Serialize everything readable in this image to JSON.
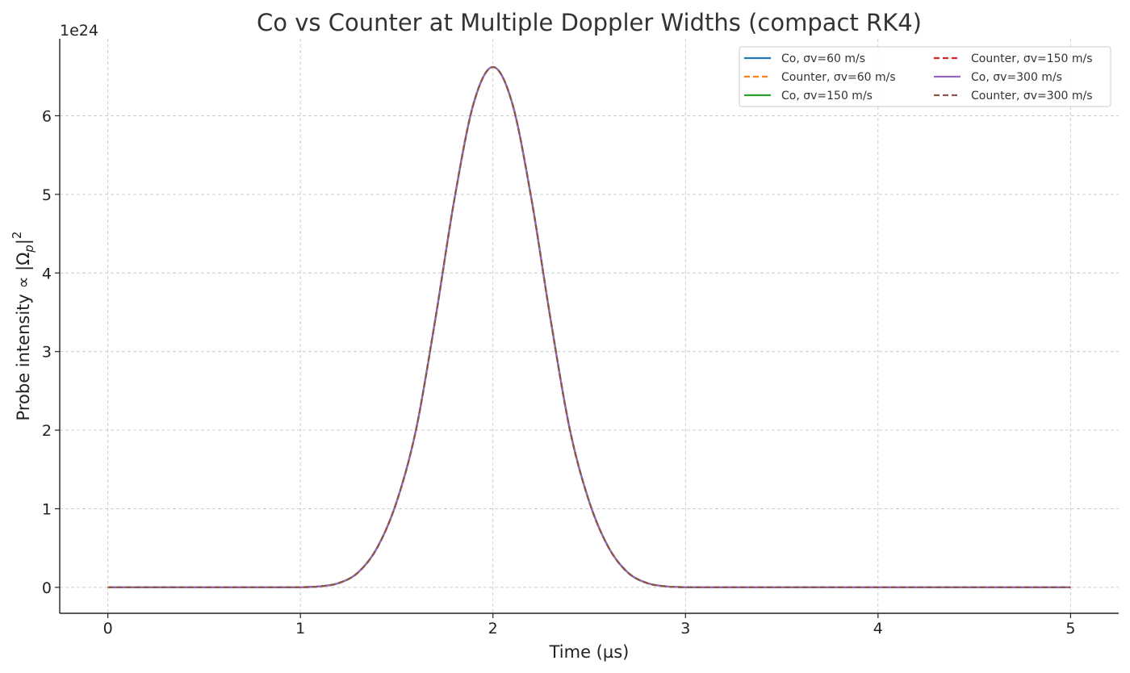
{
  "chart_data": {
    "type": "line",
    "title": "Co vs Counter at Multiple Doppler Widths (compact RK4)",
    "xlabel": "Time (µs)",
    "ylabel_prefix": "Probe intensity  ∝ |Ω",
    "ylabel_sub": "p",
    "ylabel_suffix": "|",
    "ylabel_sup": "2",
    "y_offset_text": "1e24",
    "y_scale": 1e+24,
    "xlim": [
      -0.25,
      5.25
    ],
    "ylim": [
      -0.33,
      6.98
    ],
    "xticks": [
      0,
      1,
      2,
      3,
      4,
      5
    ],
    "xtick_labels": [
      "0",
      "1",
      "2",
      "3",
      "4",
      "5"
    ],
    "yticks": [
      0,
      1,
      2,
      3,
      4,
      5,
      6
    ],
    "ytick_labels": [
      "0",
      "1",
      "2",
      "3",
      "4",
      "5",
      "6"
    ],
    "grid": true,
    "legend_position": "upper-right",
    "legend_columns": 2,
    "x": [
      0.0,
      0.2,
      0.4,
      0.6,
      0.8,
      1.0,
      1.1,
      1.2,
      1.3,
      1.4,
      1.5,
      1.6,
      1.7,
      1.8,
      1.9,
      2.0,
      2.1,
      2.2,
      2.3,
      2.4,
      2.5,
      2.6,
      2.7,
      2.8,
      2.9,
      3.0,
      3.2,
      3.4,
      3.6,
      3.8,
      4.0,
      4.5,
      5.0
    ],
    "series": [
      {
        "name": "Co, σv=60 m/s",
        "color": "#1f77b4",
        "dash": "solid",
        "values": [
          0.0,
          0.0,
          0.0,
          0.0,
          0.0,
          0.002,
          0.012,
          0.055,
          0.19,
          0.51,
          1.09,
          2.0,
          3.4,
          4.94,
          6.16,
          6.62,
          6.16,
          4.94,
          3.4,
          2.0,
          1.09,
          0.51,
          0.19,
          0.055,
          0.012,
          0.002,
          0.0,
          0.0,
          0.0,
          0.0,
          0.0,
          0.0,
          0.0
        ]
      },
      {
        "name": "Counter, σv=60 m/s",
        "color": "#ff7f0e",
        "dash": "dashed",
        "values": [
          0.0,
          0.0,
          0.0,
          0.0,
          0.0,
          0.002,
          0.012,
          0.055,
          0.19,
          0.51,
          1.09,
          2.0,
          3.4,
          4.94,
          6.16,
          6.62,
          6.16,
          4.94,
          3.4,
          2.0,
          1.09,
          0.51,
          0.19,
          0.055,
          0.012,
          0.002,
          0.0,
          0.0,
          0.0,
          0.0,
          0.0,
          0.0,
          0.0
        ]
      },
      {
        "name": "Co, σv=150 m/s",
        "color": "#2ca02c",
        "dash": "solid",
        "values": [
          0.0,
          0.0,
          0.0,
          0.0,
          0.0,
          0.002,
          0.012,
          0.055,
          0.19,
          0.51,
          1.09,
          2.0,
          3.4,
          4.94,
          6.16,
          6.62,
          6.16,
          4.94,
          3.4,
          2.0,
          1.09,
          0.51,
          0.19,
          0.055,
          0.012,
          0.002,
          0.0,
          0.0,
          0.0,
          0.0,
          0.0,
          0.0,
          0.0
        ]
      },
      {
        "name": "Counter, σv=150 m/s",
        "color": "#d62728",
        "dash": "dashed",
        "values": [
          0.0,
          0.0,
          0.0,
          0.0,
          0.0,
          0.002,
          0.012,
          0.055,
          0.19,
          0.51,
          1.09,
          2.0,
          3.4,
          4.94,
          6.16,
          6.62,
          6.16,
          4.94,
          3.4,
          2.0,
          1.09,
          0.51,
          0.19,
          0.055,
          0.012,
          0.002,
          0.0,
          0.0,
          0.0,
          0.0,
          0.0,
          0.0,
          0.0
        ]
      },
      {
        "name": "Co, σv=300 m/s",
        "color": "#9467bd",
        "dash": "solid",
        "values": [
          0.0,
          0.0,
          0.0,
          0.0,
          0.0,
          0.002,
          0.012,
          0.055,
          0.19,
          0.51,
          1.09,
          2.0,
          3.4,
          4.94,
          6.16,
          6.62,
          6.16,
          4.94,
          3.4,
          2.0,
          1.09,
          0.51,
          0.19,
          0.055,
          0.012,
          0.002,
          0.0,
          0.0,
          0.0,
          0.0,
          0.0,
          0.0,
          0.0
        ]
      },
      {
        "name": "Counter, σv=300 m/s",
        "color": "#8c564b",
        "dash": "dashed",
        "values": [
          0.0,
          0.0,
          0.0,
          0.0,
          0.0,
          0.002,
          0.012,
          0.055,
          0.19,
          0.51,
          1.09,
          2.0,
          3.4,
          4.94,
          6.16,
          6.62,
          6.16,
          4.94,
          3.4,
          2.0,
          1.09,
          0.51,
          0.19,
          0.055,
          0.012,
          0.002,
          0.0,
          0.0,
          0.0,
          0.0,
          0.0,
          0.0,
          0.0
        ]
      }
    ]
  }
}
